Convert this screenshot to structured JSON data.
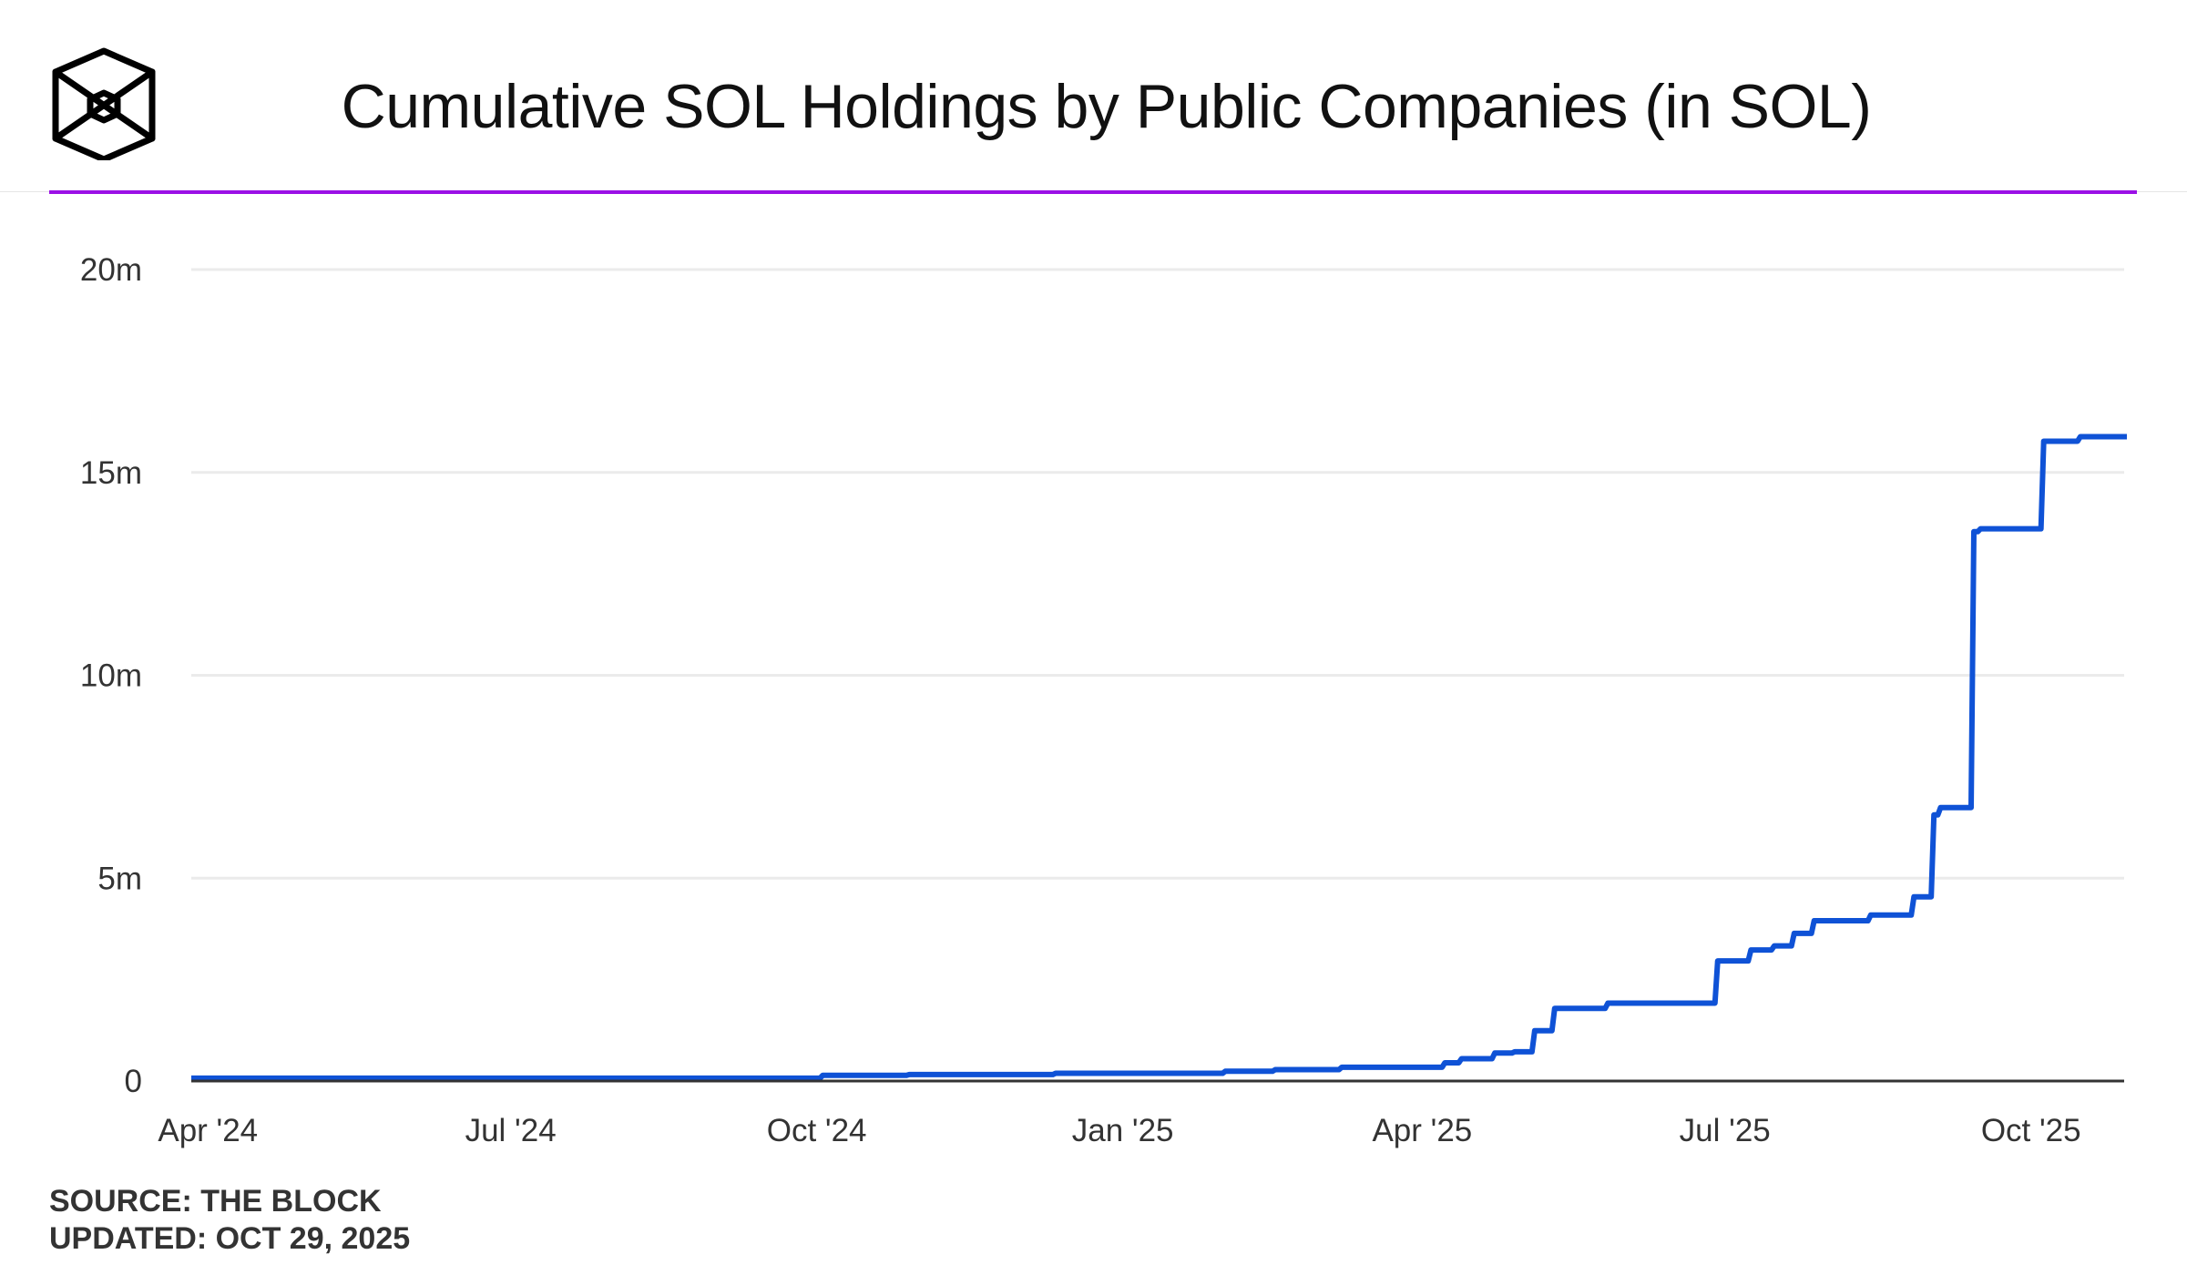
{
  "header": {
    "title": "Cumulative SOL Holdings by Public Companies (in SOL)",
    "logo": "The Block cube logo",
    "accent_color": "#9b10e6"
  },
  "footer": {
    "source": "SOURCE: THE BLOCK",
    "updated": "UPDATED: OCT 29, 2025"
  },
  "chart_data": {
    "type": "line",
    "step": true,
    "title": "Cumulative SOL Holdings by Public Companies (in SOL)",
    "xlabel": "",
    "ylabel": "",
    "ylim": [
      0,
      20000000
    ],
    "xlim": [
      "2024-03-27",
      "2025-10-29"
    ],
    "grid": true,
    "line_color": "#0f52d6",
    "y_ticks": [
      {
        "value": 0,
        "label": "0"
      },
      {
        "value": 5000000,
        "label": "5m"
      },
      {
        "value": 10000000,
        "label": "10m"
      },
      {
        "value": 15000000,
        "label": "15m"
      },
      {
        "value": 20000000,
        "label": "20m"
      }
    ],
    "x_ticks": [
      {
        "date": "2024-04-01",
        "label": "Apr '24"
      },
      {
        "date": "2024-07-01",
        "label": "Jul '24"
      },
      {
        "date": "2024-10-01",
        "label": "Oct '24"
      },
      {
        "date": "2025-01-01",
        "label": "Jan '25"
      },
      {
        "date": "2025-04-01",
        "label": "Apr '25"
      },
      {
        "date": "2025-07-01",
        "label": "Jul '25"
      },
      {
        "date": "2025-10-01",
        "label": "Oct '25"
      }
    ],
    "series": [
      {
        "points": [
          [
            "2024-03-27",
            70000
          ],
          [
            "2024-10-02",
            140000
          ],
          [
            "2024-10-28",
            160000
          ],
          [
            "2024-12-11",
            190000
          ],
          [
            "2025-01-31",
            240000
          ],
          [
            "2025-02-15",
            280000
          ],
          [
            "2025-03-07",
            340000
          ],
          [
            "2025-04-07",
            450000
          ],
          [
            "2025-04-12",
            550000
          ],
          [
            "2025-04-22",
            690000
          ],
          [
            "2025-04-28",
            720000
          ],
          [
            "2025-05-04",
            1240000
          ],
          [
            "2025-05-10",
            1790000
          ],
          [
            "2025-05-26",
            1920000
          ],
          [
            "2025-06-28",
            2960000
          ],
          [
            "2025-07-08",
            3230000
          ],
          [
            "2025-07-15",
            3330000
          ],
          [
            "2025-07-21",
            3640000
          ],
          [
            "2025-07-27",
            3950000
          ],
          [
            "2025-08-13",
            4090000
          ],
          [
            "2025-08-26",
            4540000
          ],
          [
            "2025-09-01",
            6560000
          ],
          [
            "2025-09-03",
            6740000
          ],
          [
            "2025-09-13",
            13540000
          ],
          [
            "2025-09-15",
            13610000
          ],
          [
            "2025-10-04",
            15770000
          ],
          [
            "2025-10-15",
            15880000
          ],
          [
            "2025-10-29",
            15880000
          ]
        ]
      }
    ]
  }
}
